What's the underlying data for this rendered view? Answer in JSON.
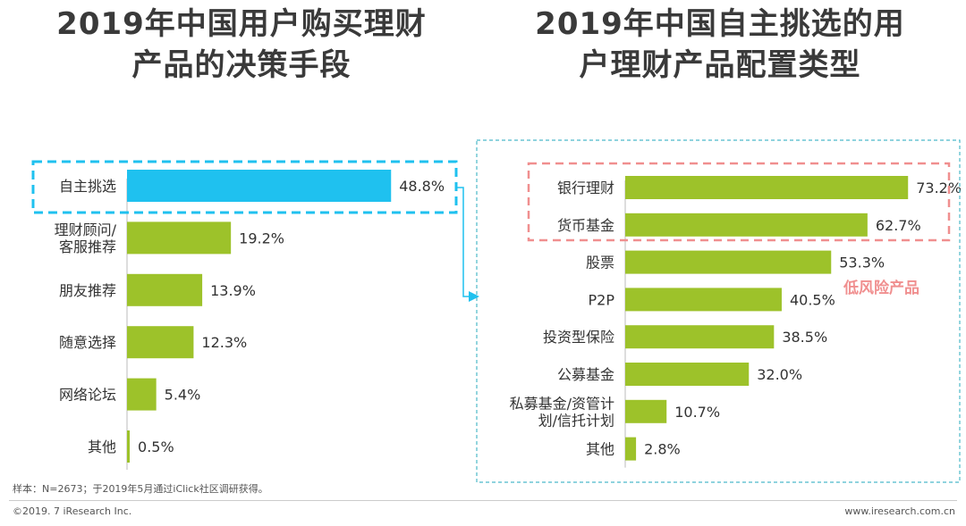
{
  "chart_data": [
    {
      "type": "bar",
      "orientation": "horizontal",
      "title": "2019年中国用户购买理财产品的决策手段",
      "title_lines": [
        "2019年中国用户购买理财",
        "产品的决策手段"
      ],
      "categories": [
        "自主挑选",
        "理财顾问/客服推荐",
        "朋友推荐",
        "随意选择",
        "网络论坛",
        "其他"
      ],
      "category_lines": [
        [
          "自主挑选"
        ],
        [
          "理财顾问/",
          "客服推荐"
        ],
        [
          "朋友推荐"
        ],
        [
          "随意选择"
        ],
        [
          "网络论坛"
        ],
        [
          "其他"
        ]
      ],
      "values": [
        48.8,
        19.2,
        13.9,
        12.3,
        5.4,
        0.5
      ],
      "value_labels": [
        "48.8%",
        "19.2%",
        "13.9%",
        "12.3%",
        "5.4%",
        "0.5%"
      ],
      "highlight_index": 0,
      "colors": {
        "bar": "#9dc22a",
        "highlight": "#1fc1ef",
        "highlight_box": "#1fc1ef"
      },
      "xlim": [
        0,
        100
      ]
    },
    {
      "type": "bar",
      "orientation": "horizontal",
      "title": "2019年中国自主挑选的用户理财产品配置类型",
      "title_lines": [
        "2019年中国自主挑选的用",
        "户理财产品配置类型"
      ],
      "categories": [
        "银行理财",
        "货币基金",
        "股票",
        "P2P",
        "投资型保险",
        "公募基金",
        "私募基金/资管计划/信托计划",
        "其他"
      ],
      "category_lines": [
        [
          "银行理财"
        ],
        [
          "货币基金"
        ],
        [
          "股票"
        ],
        [
          "P2P"
        ],
        [
          "投资型保险"
        ],
        [
          "公募基金"
        ],
        [
          "私募基金/资管计",
          "划/信托计划"
        ],
        [
          "其他"
        ]
      ],
      "values": [
        73.2,
        62.7,
        53.3,
        40.5,
        38.5,
        32.0,
        10.7,
        2.8
      ],
      "value_labels": [
        "73.2%",
        "62.7%",
        "53.3%",
        "40.5%",
        "38.5%",
        "32.0%",
        "10.7%",
        "2.8%"
      ],
      "annotation": "低风险产品",
      "highlight_indices": [
        0,
        1
      ],
      "colors": {
        "bar": "#9dc22a",
        "annotation": "#f08f8f",
        "panel_border": "#4cb9c9"
      },
      "xlim": [
        0,
        100
      ]
    }
  ],
  "footer": {
    "note": "样本：N=2673；于2019年5月通过iClick社区调研获得。",
    "copyright": "©2019. 7 iResearch Inc.",
    "website": "www.iresearch.com.cn"
  }
}
